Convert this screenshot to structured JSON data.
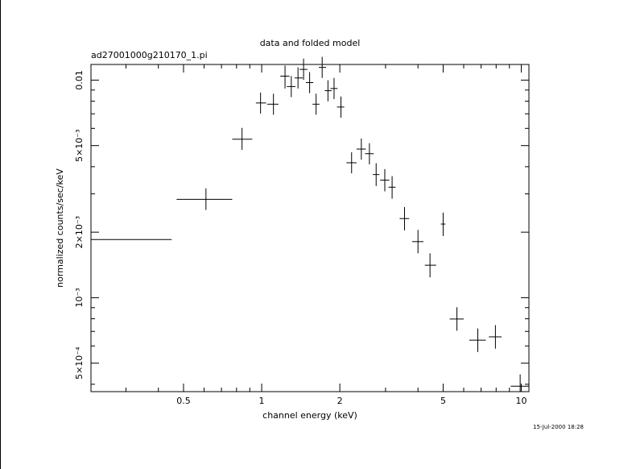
{
  "chart_data": {
    "type": "scatter",
    "title": "data and folded model",
    "subtitle": "ad27001000g210170_1.pi",
    "xlabel": "channel energy (keV)",
    "ylabel": "normalized counts/sec/keV",
    "timestamp": "15-Jul-2000 18:28",
    "x_scale": "log",
    "y_scale": "log",
    "xlim": [
      0.22,
      10.7
    ],
    "ylim": [
      0.00037,
      0.0118
    ],
    "x_ticks": [
      {
        "value": 0.5,
        "label": "0.5"
      },
      {
        "value": 1,
        "label": "1"
      },
      {
        "value": 2,
        "label": "2"
      },
      {
        "value": 5,
        "label": "5"
      },
      {
        "value": 10,
        "label": "10"
      }
    ],
    "y_ticks": [
      {
        "value": 0.01,
        "label": "0.01"
      },
      {
        "value": 0.005,
        "label": "5×10⁻³"
      },
      {
        "value": 0.002,
        "label": "2×10⁻³"
      },
      {
        "value": 0.001,
        "label": "10⁻³"
      },
      {
        "value": 0.0005,
        "label": "5×10⁻⁴"
      }
    ],
    "points": [
      {
        "x": 0.22,
        "xlo": 0.22,
        "xhi": 0.45,
        "y": 0.00185,
        "ylo": 0.00162,
        "yhi": 0.00212
      },
      {
        "x": 0.61,
        "xlo": 0.47,
        "xhi": 0.77,
        "y": 0.00283,
        "ylo": 0.00253,
        "yhi": 0.00318
      },
      {
        "x": 0.84,
        "xlo": 0.77,
        "xhi": 0.92,
        "y": 0.00535,
        "ylo": 0.00478,
        "yhi": 0.00603
      },
      {
        "x": 0.99,
        "xlo": 0.95,
        "xhi": 1.04,
        "y": 0.00785,
        "ylo": 0.00702,
        "yhi": 0.00877
      },
      {
        "x": 1.11,
        "xlo": 1.05,
        "xhi": 1.16,
        "y": 0.00775,
        "ylo": 0.00693,
        "yhi": 0.00866
      },
      {
        "x": 1.23,
        "xlo": 1.18,
        "xhi": 1.28,
        "y": 0.01043,
        "ylo": 0.00915,
        "yhi": 0.01167
      },
      {
        "x": 1.3,
        "xlo": 1.25,
        "xhi": 1.35,
        "y": 0.00934,
        "ylo": 0.00835,
        "yhi": 0.01044
      },
      {
        "x": 1.38,
        "xlo": 1.34,
        "xhi": 1.44,
        "y": 0.01023,
        "ylo": 0.00915,
        "yhi": 0.01145
      },
      {
        "x": 1.45,
        "xlo": 1.4,
        "xhi": 1.5,
        "y": 0.0112,
        "ylo": 0.01002,
        "yhi": 0.01255
      },
      {
        "x": 1.53,
        "xlo": 1.48,
        "xhi": 1.58,
        "y": 0.00974,
        "ylo": 0.00871,
        "yhi": 0.01088
      },
      {
        "x": 1.62,
        "xlo": 1.57,
        "xhi": 1.67,
        "y": 0.00775,
        "ylo": 0.00693,
        "yhi": 0.00866
      },
      {
        "x": 1.71,
        "xlo": 1.66,
        "xhi": 1.77,
        "y": 0.01144,
        "ylo": 0.01023,
        "yhi": 0.01279
      },
      {
        "x": 1.8,
        "xlo": 1.75,
        "xhi": 1.86,
        "y": 0.00894,
        "ylo": 0.00799,
        "yhi": 0.00999
      },
      {
        "x": 1.9,
        "xlo": 1.84,
        "xhi": 1.96,
        "y": 0.00915,
        "ylo": 0.00818,
        "yhi": 0.01023
      },
      {
        "x": 2.02,
        "xlo": 1.95,
        "xhi": 2.08,
        "y": 0.00752,
        "ylo": 0.00672,
        "yhi": 0.00841
      },
      {
        "x": 2.22,
        "xlo": 2.12,
        "xhi": 2.32,
        "y": 0.00417,
        "ylo": 0.00373,
        "yhi": 0.00466
      },
      {
        "x": 2.42,
        "xlo": 2.32,
        "xhi": 2.52,
        "y": 0.00482,
        "ylo": 0.00431,
        "yhi": 0.00539
      },
      {
        "x": 2.6,
        "xlo": 2.5,
        "xhi": 2.7,
        "y": 0.00459,
        "ylo": 0.0041,
        "yhi": 0.00513
      },
      {
        "x": 2.76,
        "xlo": 2.68,
        "xhi": 2.84,
        "y": 0.00368,
        "ylo": 0.00326,
        "yhi": 0.00415
      },
      {
        "x": 2.98,
        "xlo": 2.86,
        "xhi": 3.1,
        "y": 0.00347,
        "ylo": 0.00308,
        "yhi": 0.0039
      },
      {
        "x": 3.18,
        "xlo": 3.08,
        "xhi": 3.28,
        "y": 0.00322,
        "ylo": 0.00285,
        "yhi": 0.00362
      },
      {
        "x": 3.55,
        "xlo": 3.4,
        "xhi": 3.7,
        "y": 0.00231,
        "ylo": 0.00204,
        "yhi": 0.00261
      },
      {
        "x": 4.0,
        "xlo": 3.8,
        "xhi": 4.2,
        "y": 0.00181,
        "ylo": 0.0016,
        "yhi": 0.00205
      },
      {
        "x": 4.45,
        "xlo": 4.25,
        "xhi": 4.7,
        "y": 0.00141,
        "ylo": 0.00124,
        "yhi": 0.0016
      },
      {
        "x": 5.0,
        "xlo": 4.9,
        "xhi": 5.1,
        "y": 0.00218,
        "ylo": 0.00192,
        "yhi": 0.00246
      },
      {
        "x": 5.65,
        "xlo": 5.3,
        "xhi": 6.0,
        "y": 0.000798,
        "ylo": 0.000705,
        "yhi": 0.000904
      },
      {
        "x": 6.8,
        "xlo": 6.3,
        "xhi": 7.3,
        "y": 0.000638,
        "ylo": 0.000563,
        "yhi": 0.000722
      },
      {
        "x": 7.95,
        "xlo": 7.5,
        "xhi": 8.4,
        "y": 0.000661,
        "ylo": 0.000583,
        "yhi": 0.000748
      },
      {
        "x": 9.9,
        "xlo": 9.1,
        "xhi": 10.7,
        "y": 0.000392,
        "ylo": 0.000346,
        "yhi": 0.000444
      }
    ]
  }
}
